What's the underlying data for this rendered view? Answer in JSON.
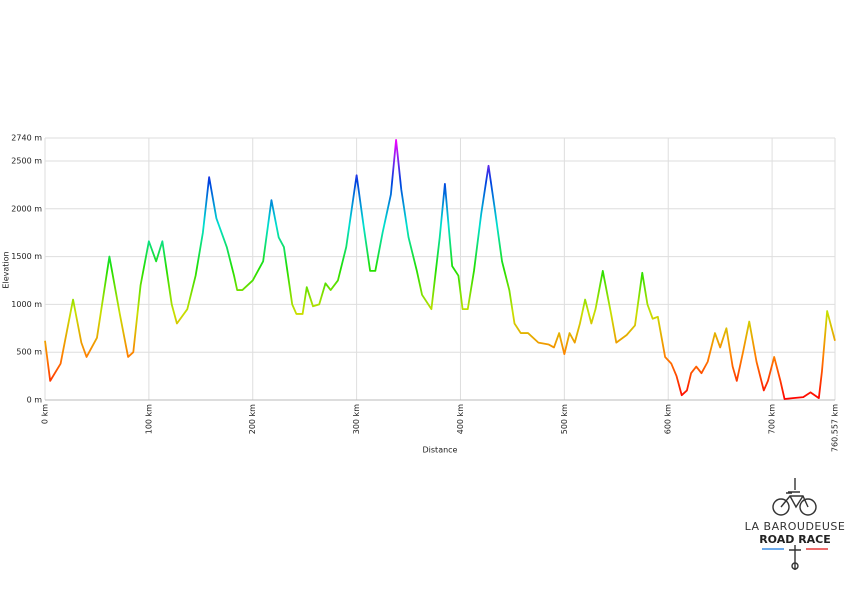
{
  "chart_data": {
    "type": "line",
    "x_label": "Distance",
    "y_label": "Elevation",
    "xlim": [
      0,
      760.557
    ],
    "ylim": [
      0,
      2740
    ],
    "xticks": [
      {
        "value": 0,
        "label": "0 km"
      },
      {
        "value": 100,
        "label": "100 km"
      },
      {
        "value": 200,
        "label": "200 km"
      },
      {
        "value": 300,
        "label": "300 km"
      },
      {
        "value": 400,
        "label": "400 km"
      },
      {
        "value": 500,
        "label": "500 km"
      },
      {
        "value": 600,
        "label": "600 km"
      },
      {
        "value": 700,
        "label": "700 km"
      },
      {
        "value": 760.557,
        "label": "760.557 km"
      }
    ],
    "yticks": [
      {
        "value": 0,
        "label": "0 m"
      },
      {
        "value": 500,
        "label": "500 m"
      },
      {
        "value": 1000,
        "label": "1000 m"
      },
      {
        "value": 1500,
        "label": "1500 m"
      },
      {
        "value": 2000,
        "label": "2000 m"
      },
      {
        "value": 2500,
        "label": "2500 m"
      },
      {
        "value": 2740,
        "label": "2740 m"
      }
    ],
    "grid": true,
    "gradient_colors": [
      "#ff0000",
      "#ff8000",
      "#c8e000",
      "#20e000",
      "#00e0d0",
      "#0040e0",
      "#ff00ff"
    ],
    "x": [
      0,
      5,
      15,
      27,
      35,
      40,
      50,
      62,
      72,
      80,
      85,
      92,
      100,
      107,
      113,
      122,
      127,
      137,
      145,
      152,
      158,
      165,
      175,
      182,
      185,
      190,
      200,
      210,
      218,
      225,
      230,
      238,
      242,
      248,
      252,
      258,
      264,
      270,
      275,
      282,
      290,
      300,
      307,
      313,
      318,
      325,
      333,
      338,
      343,
      350,
      358,
      363,
      372,
      380,
      385,
      392,
      398,
      402,
      407,
      413,
      420,
      427,
      433,
      440,
      447,
      452,
      458,
      465,
      475,
      485,
      490,
      495,
      500,
      505,
      510,
      515,
      520,
      526,
      530,
      537,
      545,
      550,
      560,
      568,
      575,
      580,
      585,
      590,
      597,
      603,
      608,
      613,
      618,
      622,
      627,
      632,
      638,
      645,
      650,
      656,
      662,
      666,
      672,
      678,
      685,
      692,
      696,
      702,
      708,
      712,
      720,
      730,
      737,
      745,
      748,
      753,
      760.557
    ],
    "values": [
      620,
      200,
      380,
      1050,
      600,
      450,
      650,
      1500,
      900,
      450,
      500,
      1200,
      1660,
      1450,
      1660,
      1000,
      800,
      950,
      1300,
      1750,
      2330,
      1900,
      1600,
      1300,
      1150,
      1150,
      1250,
      1450,
      2090,
      1700,
      1600,
      1000,
      900,
      900,
      1180,
      980,
      1000,
      1220,
      1150,
      1250,
      1600,
      2350,
      1800,
      1350,
      1350,
      1750,
      2150,
      2720,
      2200,
      1700,
      1350,
      1100,
      950,
      1700,
      2260,
      1400,
      1300,
      950,
      950,
      1350,
      1950,
      2450,
      2000,
      1450,
      1150,
      800,
      700,
      700,
      600,
      580,
      550,
      700,
      480,
      700,
      600,
      800,
      1050,
      800,
      950,
      1350,
      900,
      600,
      680,
      780,
      1330,
      1000,
      850,
      870,
      450,
      380,
      250,
      50,
      100,
      280,
      350,
      280,
      400,
      700,
      550,
      750,
      350,
      200,
      500,
      820,
      400,
      100,
      200,
      450,
      200,
      10,
      20,
      30,
      80,
      20,
      300,
      930,
      620
    ]
  },
  "logo": {
    "line1": "LA BAROUDEUSE",
    "line2": "ROAD RACE"
  }
}
